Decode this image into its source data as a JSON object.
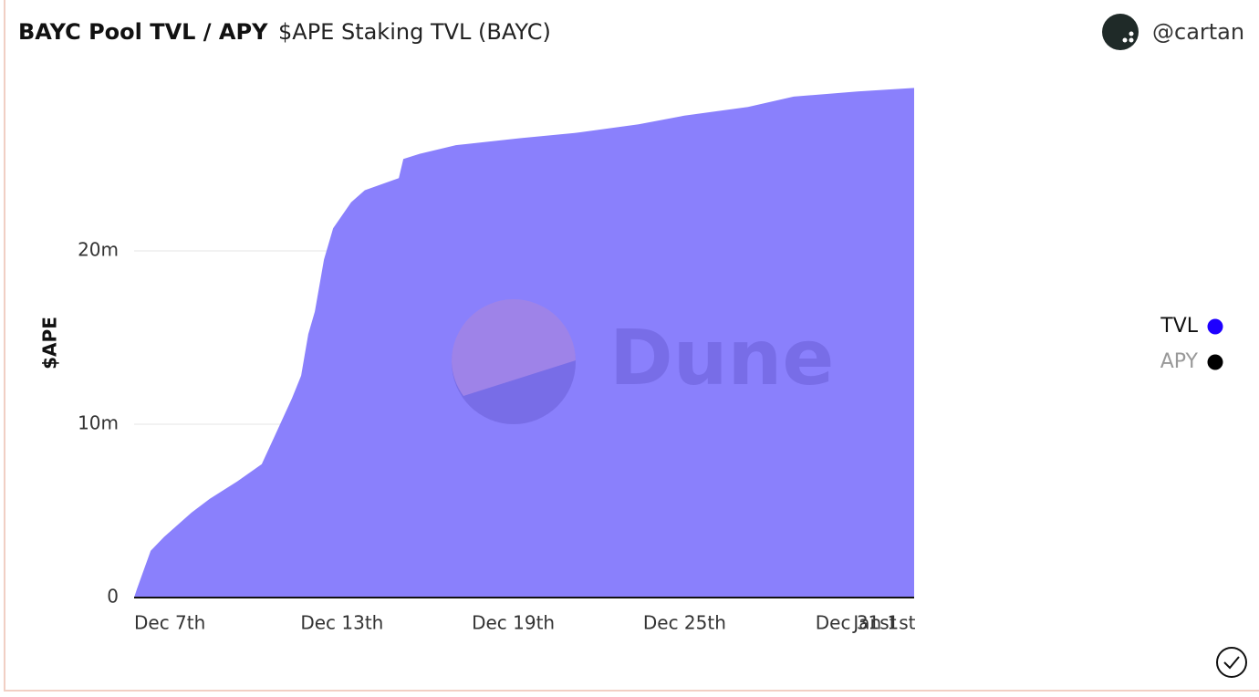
{
  "chart_data": {
    "type": "area",
    "title": "BAYC Pool TVL / APY",
    "subtitle": "$APE Staking TVL (BAYC)",
    "author": "@cartan",
    "watermark": "Dune",
    "y_label": "$APE",
    "x": [
      5.72,
      5.82,
      6.3,
      6.77,
      7.73,
      8.37,
      9.33,
      10.19,
      10.61,
      11.25,
      11.57,
      11.82,
      12.05,
      12.37,
      12.69,
      13.32,
      13.8,
      14.99,
      15.15,
      15.72,
      16.99,
      19.23,
      21.15,
      23.39,
      24.99,
      27.22,
      28.82,
      31.06,
      33.04
    ],
    "series": [
      {
        "name": "TVL",
        "color": "#1e00ff",
        "fill": "#8a80fc",
        "values": [
          0,
          500000,
          2700000,
          3500000,
          4900000,
          5700000,
          6700000,
          7700000,
          9200000,
          11500000,
          12800000,
          15200000,
          16500000,
          19500000,
          21300000,
          22800000,
          23500000,
          24200000,
          25300000,
          25600000,
          26100000,
          26500000,
          26800000,
          27300000,
          27800000,
          28300000,
          28900000,
          29200000,
          29400000
        ]
      }
    ],
    "hidden_series": [
      {
        "name": "APY",
        "color": "#000000"
      }
    ],
    "xlim": [
      5.72,
      33.04
    ],
    "xticks": [
      {
        "value": 7,
        "label": "Dec 7th"
      },
      {
        "value": 13,
        "label": "Dec 13th"
      },
      {
        "value": 19,
        "label": "Dec 19th"
      },
      {
        "value": 25,
        "label": "Dec 25th"
      },
      {
        "value": 31,
        "label": "Dec 31st"
      },
      {
        "value": 32,
        "label": "Jan 1st"
      }
    ],
    "ylim": [
      0,
      30000000
    ],
    "yticks": [
      0,
      {
        "value": 10000000,
        "label": "10m"
      },
      {
        "value": 20000000,
        "label": "20m"
      }
    ],
    "grid": true,
    "legend": "right"
  }
}
